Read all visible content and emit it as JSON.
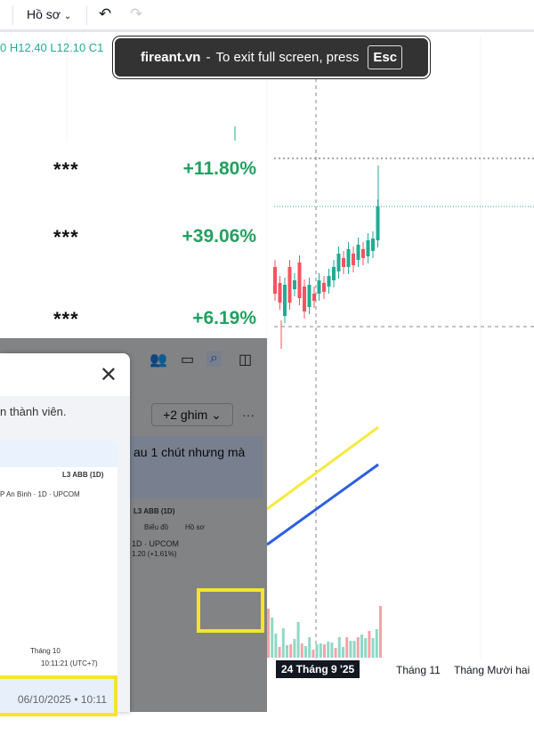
{
  "toolbar": {
    "profile_label": "Hồ sơ",
    "undo": "undo-icon",
    "redo": "redo-icon"
  },
  "ohlc": {
    "o_tail": "0",
    "h": "H12.40",
    "l": "L12.10",
    "c": "C1"
  },
  "toast": {
    "site": "fireant.vn",
    "dash": "-",
    "text": "To exit full screen, press",
    "key": "Esc"
  },
  "stats": [
    {
      "name": "***",
      "value": "+11.80%"
    },
    {
      "name": "***",
      "value": "+39.06%"
    },
    {
      "name": "***",
      "value": "+6.19%"
    }
  ],
  "xaxis": {
    "crosshair_label": "24 Tháng 9 '25",
    "labels": [
      "Tháng 11",
      "Tháng Mười hai"
    ]
  },
  "colors": {
    "up": "#22ab94",
    "down": "#f7525f",
    "ma_yellow": "#f7e943",
    "ma_blue": "#2a5fe0",
    "positive": "#22a060"
  },
  "dialog": {
    "member_text": "n thành viên.",
    "date": "06/10/2025 • 10:11",
    "close": "close-icon"
  },
  "community": {
    "pins_label": "+2 ghim",
    "more": "···",
    "message": "au 1 chút nhưng mà",
    "tab": "L3 ABB (1D)",
    "chart_menu": "Biểu đồ",
    "profile_menu": "Hồ sơ",
    "symbol": "1D · UPCOM",
    "change": "1.20 (+1.61%)"
  },
  "mini_chart": {
    "tab": "L3 ABB (1D)",
    "symbol": "P An Bình · 1D · UPCOM",
    "time": "10:11:21 (UTC+7)",
    "month": "Tháng 10"
  }
}
